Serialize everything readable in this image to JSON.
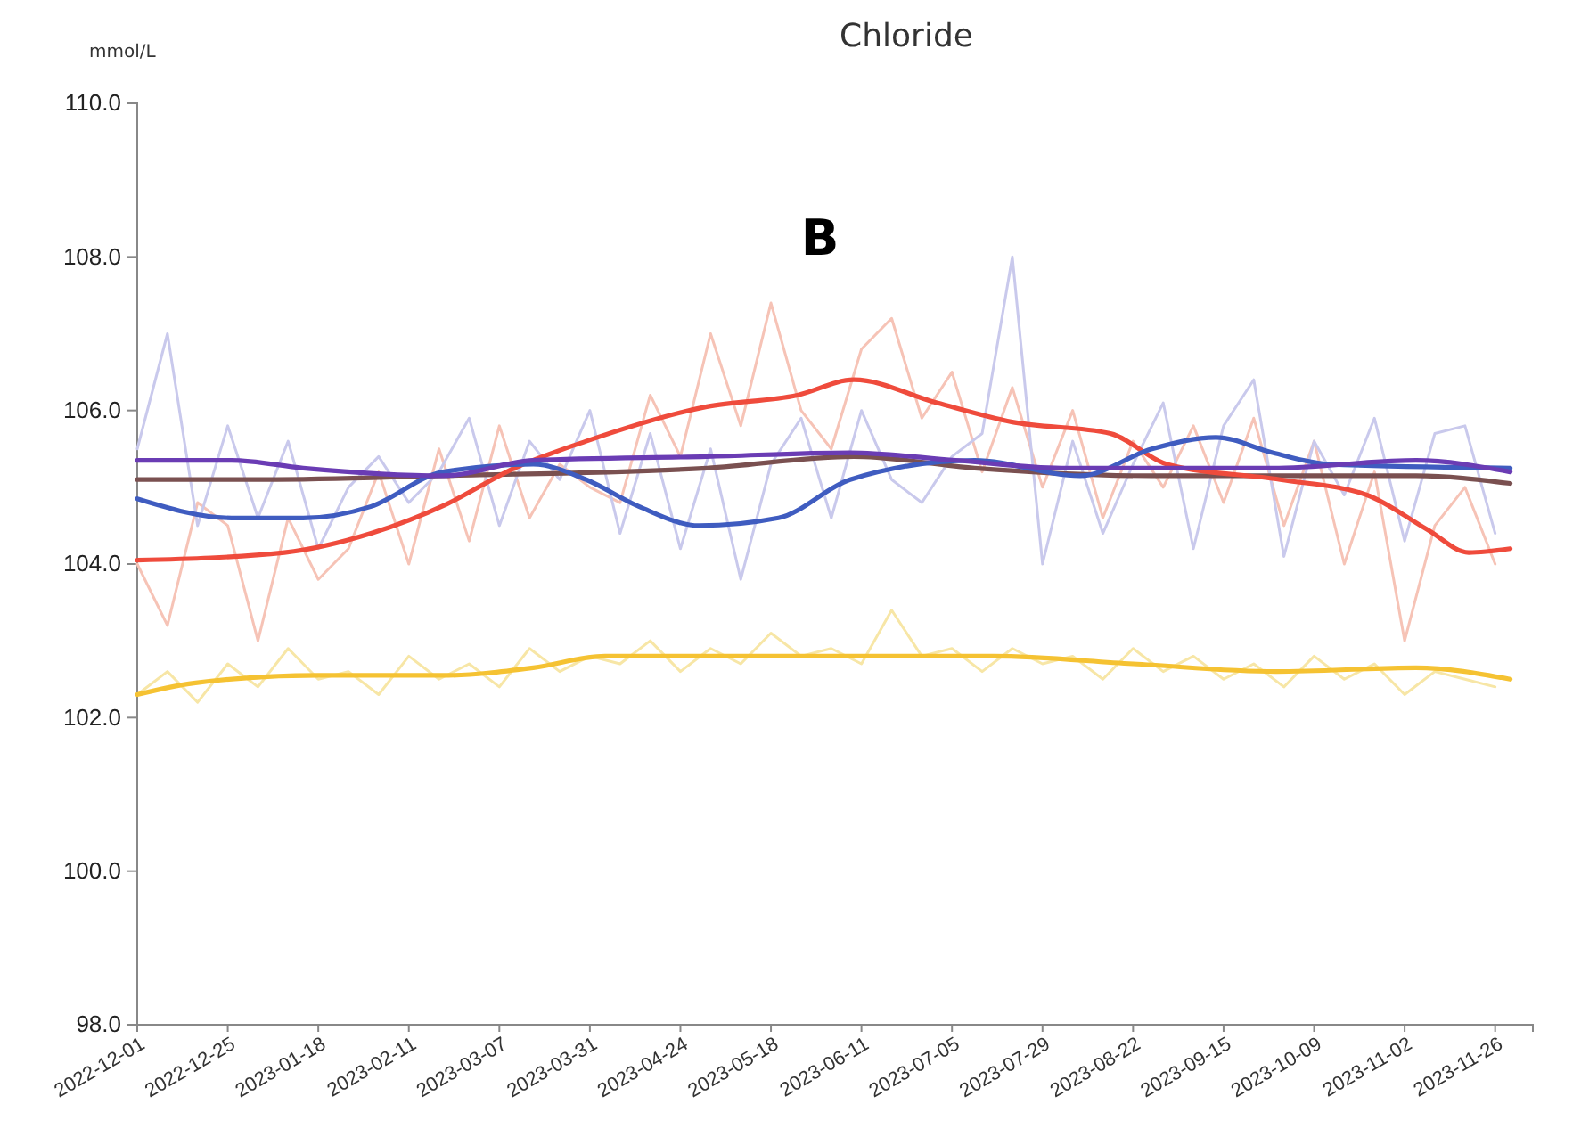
{
  "chart_data": {
    "type": "line",
    "title": "Chloride",
    "ylabel": "mmol/L",
    "annotations": [
      "B"
    ],
    "x": [
      "2022-12-01",
      "2022-12-09",
      "2022-12-17",
      "2022-12-25",
      "2023-01-02",
      "2023-01-10",
      "2023-01-18",
      "2023-01-26",
      "2023-02-03",
      "2023-02-11",
      "2023-02-19",
      "2023-02-27",
      "2023-03-07",
      "2023-03-15",
      "2023-03-23",
      "2023-03-31",
      "2023-04-08",
      "2023-04-16",
      "2023-04-24",
      "2023-05-02",
      "2023-05-10",
      "2023-05-18",
      "2023-05-26",
      "2023-06-03",
      "2023-06-11",
      "2023-06-19",
      "2023-06-27",
      "2023-07-05",
      "2023-07-13",
      "2023-07-21",
      "2023-07-29",
      "2023-08-06",
      "2023-08-14",
      "2023-08-22",
      "2023-08-30",
      "2023-09-07",
      "2023-09-15",
      "2023-09-23",
      "2023-10-01",
      "2023-10-09",
      "2023-10-17",
      "2023-10-25",
      "2023-11-02",
      "2023-11-10",
      "2023-11-18",
      "2023-11-26"
    ],
    "series": [
      {
        "color": "#f7e6a6",
        "values": [
          102.3,
          102.6,
          102.2,
          102.7,
          102.4,
          102.9,
          102.5,
          102.6,
          102.3,
          102.8,
          102.5,
          102.7,
          102.4,
          102.9,
          102.6,
          102.8,
          102.7,
          103.0,
          102.6,
          102.9,
          102.7,
          103.1,
          102.8,
          102.9,
          102.7,
          103.4,
          102.8,
          102.9,
          102.6,
          102.9,
          102.7,
          102.8,
          102.5,
          102.9,
          102.6,
          102.8,
          102.5,
          102.7,
          102.4,
          102.8,
          102.5,
          102.7,
          102.3,
          102.6,
          102.5,
          102.4
        ]
      },
      {
        "color": "#f6c3b6",
        "values": [
          104.0,
          103.2,
          104.8,
          104.5,
          103.0,
          104.6,
          103.8,
          104.2,
          105.2,
          104.0,
          105.5,
          104.3,
          105.8,
          104.6,
          105.3,
          105.0,
          104.8,
          106.2,
          105.4,
          107.0,
          105.8,
          107.4,
          106.0,
          105.5,
          106.8,
          107.2,
          105.9,
          106.5,
          105.2,
          106.3,
          105.0,
          106.0,
          104.6,
          105.6,
          105.0,
          105.8,
          104.8,
          105.9,
          104.5,
          105.6,
          104.0,
          105.2,
          103.0,
          104.5,
          105.0,
          104.0
        ]
      },
      {
        "color": "#c9c9ec",
        "values": [
          105.5,
          107.0,
          104.5,
          105.8,
          104.6,
          105.6,
          104.2,
          105.0,
          105.4,
          104.8,
          105.2,
          105.9,
          104.5,
          105.6,
          105.1,
          106.0,
          104.4,
          105.7,
          104.2,
          105.5,
          103.8,
          105.3,
          105.9,
          104.6,
          106.0,
          105.1,
          104.8,
          105.4,
          105.7,
          108.0,
          104.0,
          105.6,
          104.4,
          105.3,
          106.1,
          104.2,
          105.8,
          106.4,
          104.1,
          105.6,
          104.9,
          105.9,
          104.3,
          105.7,
          105.8,
          104.4
        ]
      },
      {
        "color": "#f5c232",
        "x": [
          "2022-12-01",
          "2022-12-16",
          "2023-01-18",
          "2023-02-20",
          "2023-03-16",
          "2023-04-04",
          "2023-05-11",
          "2023-06-09",
          "2023-07-16",
          "2023-08-22",
          "2023-09-29",
          "2023-11-05",
          "2023-11-30"
        ],
        "values": [
          102.3,
          102.45,
          102.55,
          102.55,
          102.65,
          102.8,
          102.8,
          102.8,
          102.8,
          102.7,
          102.6,
          102.65,
          102.5
        ]
      },
      {
        "color": "#7a5050",
        "x": [
          "2022-12-01",
          "2023-01-04",
          "2023-02-20",
          "2023-05-01",
          "2023-06-09",
          "2023-07-11",
          "2023-08-27",
          "2023-11-05",
          "2023-11-30"
        ],
        "values": [
          105.1,
          105.1,
          105.15,
          105.25,
          105.4,
          105.25,
          105.15,
          105.15,
          105.05
        ]
      },
      {
        "color": "#ef4b3c",
        "x": [
          "2022-12-01",
          "2023-01-09",
          "2023-02-01",
          "2023-02-21",
          "2023-03-11",
          "2023-03-30",
          "2023-05-01",
          "2023-05-25",
          "2023-06-09",
          "2023-07-01",
          "2023-07-21",
          "2023-08-16",
          "2023-08-31",
          "2023-09-30",
          "2023-10-23",
          "2023-11-08",
          "2023-11-19",
          "2023-11-30"
        ],
        "values": [
          104.05,
          104.15,
          104.4,
          104.78,
          105.25,
          105.6,
          106.05,
          106.2,
          106.4,
          106.1,
          105.85,
          105.7,
          105.3,
          105.1,
          104.9,
          104.45,
          104.15,
          104.2
        ]
      },
      {
        "color": "#3f5cc0",
        "x": [
          "2022-12-01",
          "2022-12-26",
          "2023-01-14",
          "2023-02-01",
          "2023-02-20",
          "2023-03-16",
          "2023-03-30",
          "2023-04-13",
          "2023-04-29",
          "2023-05-20",
          "2023-06-08",
          "2023-07-11",
          "2023-08-08",
          "2023-08-27",
          "2023-09-13",
          "2023-09-28",
          "2023-10-13",
          "2023-11-30"
        ],
        "values": [
          104.85,
          104.6,
          104.6,
          104.75,
          105.2,
          105.3,
          105.1,
          104.75,
          104.5,
          104.6,
          105.1,
          105.35,
          105.15,
          105.5,
          105.65,
          105.45,
          105.3,
          105.25
        ]
      },
      {
        "color": "#6a3cb4",
        "x": [
          "2022-12-01",
          "2022-12-26",
          "2023-01-14",
          "2023-02-20",
          "2023-03-16",
          "2023-05-01",
          "2023-06-08",
          "2023-07-06",
          "2023-08-03",
          "2023-09-28",
          "2023-11-05",
          "2023-11-30"
        ],
        "values": [
          105.35,
          105.35,
          105.25,
          105.15,
          105.35,
          105.4,
          105.45,
          105.35,
          105.25,
          105.25,
          105.35,
          105.2
        ]
      }
    ],
    "xlim": [
      "2022-12-01",
      "2023-12-06"
    ],
    "xticks": [
      "2022-12-01",
      "2022-12-25",
      "2023-01-18",
      "2023-02-11",
      "2023-03-07",
      "2023-03-31",
      "2023-04-24",
      "2023-05-18",
      "2023-06-11",
      "2023-07-05",
      "2023-07-29",
      "2023-08-22",
      "2023-09-15",
      "2023-10-09",
      "2023-11-02",
      "2023-11-26"
    ],
    "ylim": [
      98,
      110
    ],
    "yticks": [
      {
        "value": 98,
        "label": "98.0"
      },
      {
        "value": 100,
        "label": "100.0"
      },
      {
        "value": 102,
        "label": "102.0"
      },
      {
        "value": 104,
        "label": "104.0"
      },
      {
        "value": 106,
        "label": "106.0"
      },
      {
        "value": 108,
        "label": "108.0"
      },
      {
        "value": 110,
        "label": "110.0"
      }
    ],
    "grid": false,
    "marker": "none",
    "line_style": "solid"
  }
}
